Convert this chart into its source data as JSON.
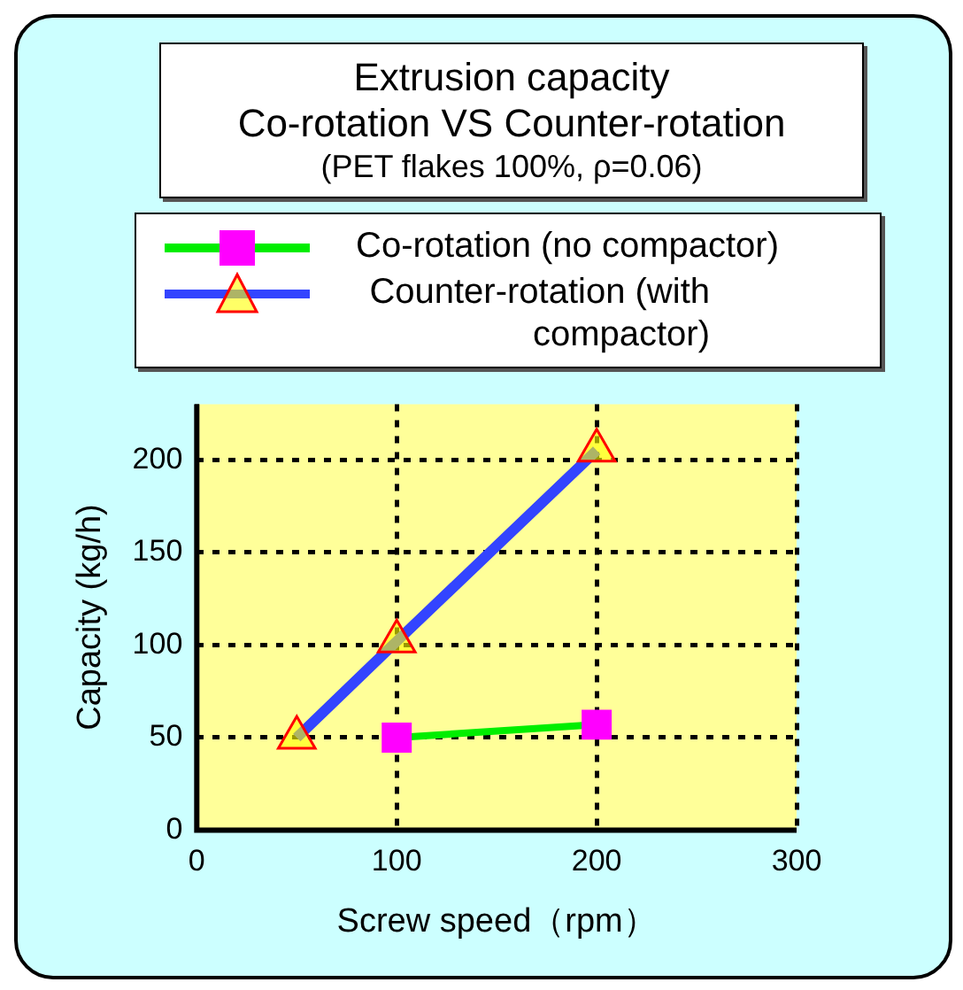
{
  "chart_data": {
    "type": "line",
    "title": "Extrusion capacity\nCo-rotation VS Counter-rotation",
    "subtitle": "(PET flakes 100%, ρ=0.06)",
    "xlabel": "Screw speed（rpm）",
    "ylabel": "Capacity (kg/h)",
    "xlim": [
      0,
      300
    ],
    "xticks": [
      0,
      100,
      200,
      300
    ],
    "ylim": [
      0,
      230
    ],
    "yticks": [
      0,
      50,
      100,
      150,
      200
    ],
    "grid": true,
    "legend": "top",
    "line_style": "solid",
    "series": [
      {
        "name": "Co-rotation (no compactor)",
        "color": "#00ee00",
        "marker": "square",
        "x": [
          100,
          200
        ],
        "values": [
          50,
          57
        ]
      },
      {
        "name": "Counter-rotation (with compactor)",
        "color": "#3344ff",
        "marker": "triangle",
        "x": [
          50,
          100,
          200
        ],
        "values": [
          50,
          102,
          205
        ]
      }
    ]
  }
}
